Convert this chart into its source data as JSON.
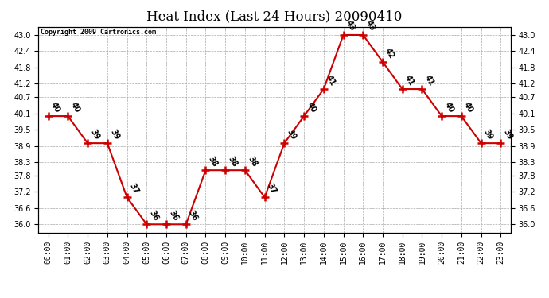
{
  "title": "Heat Index (Last 24 Hours) 20090410",
  "copyright_text": "Copyright 2009 Cartronics.com",
  "x_labels": [
    "00:00",
    "01:00",
    "02:00",
    "03:00",
    "04:00",
    "05:00",
    "06:00",
    "07:00",
    "08:00",
    "09:00",
    "10:00",
    "11:00",
    "12:00",
    "13:00",
    "14:00",
    "15:00",
    "16:00",
    "17:00",
    "18:00",
    "19:00",
    "20:00",
    "21:00",
    "22:00",
    "23:00"
  ],
  "y_values": [
    40,
    40,
    39,
    39,
    37,
    36,
    36,
    36,
    38,
    38,
    38,
    37,
    39,
    40,
    41,
    43,
    43,
    42,
    41,
    41,
    40,
    40,
    39,
    39
  ],
  "ylim_low": 35.7,
  "ylim_high": 43.3,
  "yticks": [
    36.0,
    36.6,
    37.2,
    37.8,
    38.3,
    38.9,
    39.5,
    40.1,
    40.7,
    41.2,
    41.8,
    42.4,
    43.0
  ],
  "line_color": "#cc0000",
  "marker_color": "#cc0000",
  "bg_color": "#ffffff",
  "grid_color": "#aaaaaa",
  "title_fontsize": 12,
  "tick_fontsize": 7,
  "annotation_fontsize": 7,
  "copyright_fontsize": 6
}
